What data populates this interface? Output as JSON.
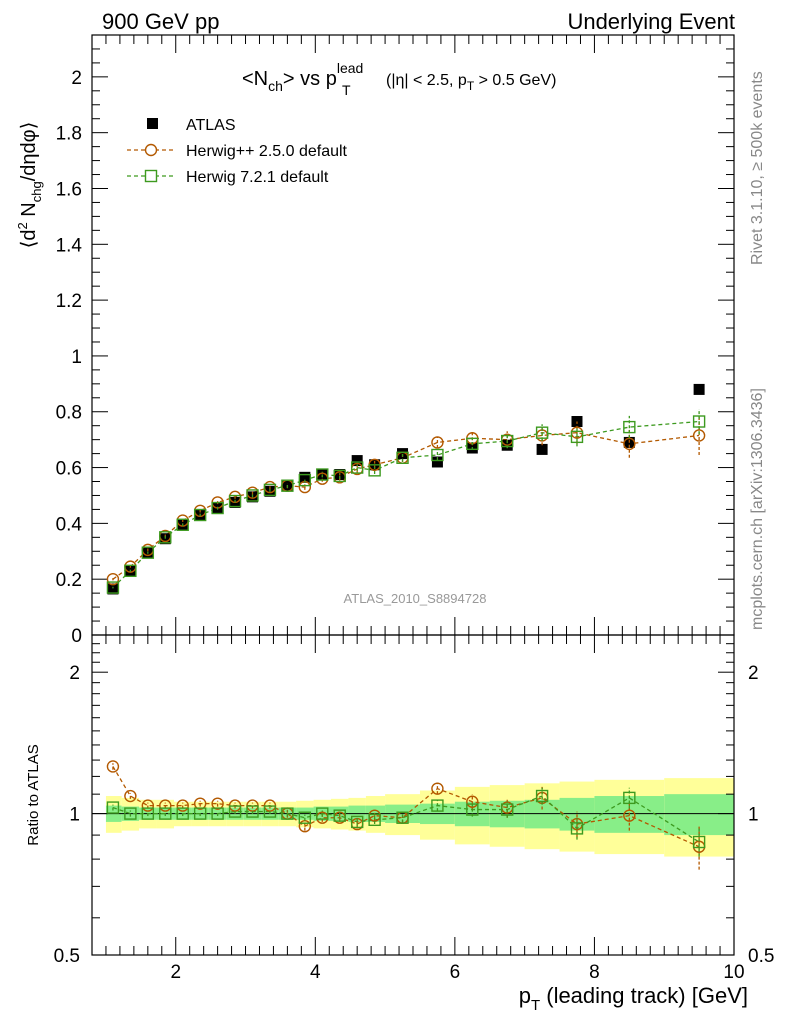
{
  "header": {
    "left": "900 GeV pp",
    "right": "Underlying Event"
  },
  "side_text": {
    "rivet": "Rivet 3.1.10, ≥ 500k events",
    "mcplots": "mcplots.cern.ch [arXiv:1306.3436]"
  },
  "chart_data": [
    {
      "type": "scatter",
      "panel": "main",
      "title_parts": {
        "open": "<N",
        "sub1": "ch",
        "mid": "> vs p",
        "sup": "lead",
        "sub2": "T",
        "cut1": "(|η| < 2.5, p",
        "cut_sub": "T",
        "cut2": " > 0.5 GeV)"
      },
      "ylabel_parts": {
        "a": "⟨d",
        "sup": "2",
        "b": " N",
        "sub": "chg",
        "c": "/dηdφ⟩"
      },
      "watermark": "ATLAS_2010_S8894728",
      "ylim": [
        0,
        2.15
      ],
      "xlim": [
        0.8,
        10
      ],
      "yticks": [
        {
          "v": 0,
          "label": "0"
        },
        {
          "v": 0.2,
          "label": "0.2"
        },
        {
          "v": 0.4,
          "label": "0.4"
        },
        {
          "v": 0.6,
          "label": "0.6"
        },
        {
          "v": 0.8,
          "label": "0.8"
        },
        {
          "v": 1.0,
          "label": "1"
        },
        {
          "v": 1.2,
          "label": "1.2"
        },
        {
          "v": 1.4,
          "label": "1.4"
        },
        {
          "v": 1.6,
          "label": "1.6"
        },
        {
          "v": 1.8,
          "label": "1.8"
        },
        {
          "v": 2.0,
          "label": "2"
        }
      ],
      "legend": [
        "ATLAS",
        "Herwig++ 2.5.0 default",
        "Herwig 7.2.1 default"
      ],
      "x": [
        1.1,
        1.35,
        1.6,
        1.85,
        2.1,
        2.35,
        2.6,
        2.85,
        3.1,
        3.35,
        3.6,
        3.85,
        4.1,
        4.35,
        4.6,
        4.85,
        5.25,
        5.75,
        6.25,
        6.75,
        7.25,
        7.75,
        8.5,
        9.5
      ],
      "series": [
        {
          "name": "ATLAS",
          "color": "#000000",
          "marker": "filled-square",
          "values": [
            0.165,
            0.23,
            0.295,
            0.345,
            0.395,
            0.43,
            0.455,
            0.475,
            0.495,
            0.515,
            0.535,
            0.565,
            0.575,
            0.575,
            0.625,
            0.61,
            0.65,
            0.62,
            0.67,
            0.68,
            0.665,
            0.765,
            0.69,
            0.88
          ]
        },
        {
          "name": "Herwig++ 2.5.0 default",
          "color": "#b35900",
          "marker": "open-circle",
          "values": [
            0.2,
            0.245,
            0.305,
            0.355,
            0.41,
            0.445,
            0.475,
            0.495,
            0.51,
            0.53,
            0.535,
            0.53,
            0.56,
            0.565,
            0.595,
            0.61,
            0.635,
            0.69,
            0.705,
            0.7,
            0.715,
            0.725,
            0.685,
            0.715
          ],
          "errors": [
            0.004,
            0.004,
            0.005,
            0.005,
            0.005,
            0.006,
            0.006,
            0.007,
            0.007,
            0.008,
            0.009,
            0.01,
            0.011,
            0.012,
            0.013,
            0.014,
            0.015,
            0.02,
            0.025,
            0.03,
            0.035,
            0.04,
            0.05,
            0.07
          ]
        },
        {
          "name": "Herwig 7.2.1 default",
          "color": "#3d9a1f",
          "marker": "open-square",
          "values": [
            0.17,
            0.23,
            0.295,
            0.35,
            0.395,
            0.43,
            0.455,
            0.48,
            0.5,
            0.52,
            0.535,
            0.555,
            0.575,
            0.57,
            0.6,
            0.59,
            0.635,
            0.645,
            0.685,
            0.695,
            0.725,
            0.71,
            0.745,
            0.765
          ],
          "errors": [
            0.003,
            0.004,
            0.004,
            0.005,
            0.005,
            0.005,
            0.006,
            0.006,
            0.007,
            0.007,
            0.008,
            0.009,
            0.01,
            0.011,
            0.012,
            0.013,
            0.014,
            0.018,
            0.022,
            0.026,
            0.03,
            0.034,
            0.04,
            0.045
          ]
        }
      ]
    },
    {
      "type": "scatter",
      "panel": "ratio",
      "ylabel": "Ratio to ATLAS",
      "xlabel_parts": {
        "a": "p",
        "sub": "T",
        "b": " (leading track) [GeV]"
      },
      "ylim": [
        0.5,
        2.4
      ],
      "yscale": "log",
      "xlim": [
        0.8,
        10
      ],
      "yticks": [
        {
          "v": 0.5,
          "label": "0.5"
        },
        {
          "v": 1,
          "label": "1"
        },
        {
          "v": 2,
          "label": "2"
        }
      ],
      "xticks": [
        {
          "v": 2,
          "label": "2"
        },
        {
          "v": 4,
          "label": "4"
        },
        {
          "v": 6,
          "label": "6"
        },
        {
          "v": 8,
          "label": "8"
        },
        {
          "v": 10,
          "label": "10"
        }
      ],
      "band_edges": [
        1.0,
        1.225,
        1.475,
        1.725,
        1.975,
        2.225,
        2.475,
        2.725,
        2.975,
        3.225,
        3.475,
        3.725,
        3.975,
        4.225,
        4.475,
        4.725,
        5.0,
        5.5,
        6.0,
        6.5,
        7.0,
        7.5,
        8.0,
        9.0,
        10.0
      ],
      "band_inner_half": [
        0.04,
        0.035,
        0.03,
        0.03,
        0.03,
        0.03,
        0.03,
        0.03,
        0.03,
        0.03,
        0.03,
        0.03,
        0.035,
        0.035,
        0.04,
        0.04,
        0.045,
        0.05,
        0.06,
        0.065,
        0.07,
        0.08,
        0.09,
        0.1
      ],
      "band_outer_half": [
        0.09,
        0.08,
        0.07,
        0.07,
        0.06,
        0.06,
        0.06,
        0.06,
        0.06,
        0.06,
        0.06,
        0.065,
        0.07,
        0.075,
        0.08,
        0.09,
        0.1,
        0.12,
        0.14,
        0.15,
        0.16,
        0.17,
        0.18,
        0.19
      ],
      "band_inner_color": "#88ee88",
      "band_outer_color": "#ffff99",
      "series": [
        {
          "name": "Herwig++ 2.5.0 default",
          "color": "#b35900",
          "values": [
            1.26,
            1.09,
            1.04,
            1.04,
            1.04,
            1.05,
            1.05,
            1.04,
            1.04,
            1.04,
            1.0,
            0.94,
            0.98,
            0.98,
            0.95,
            0.99,
            0.98,
            1.13,
            1.06,
            1.03,
            1.08,
            0.95,
            0.99,
            0.85
          ],
          "errors": [
            0.02,
            0.015,
            0.015,
            0.015,
            0.015,
            0.015,
            0.015,
            0.015,
            0.015,
            0.015,
            0.02,
            0.02,
            0.02,
            0.02,
            0.02,
            0.025,
            0.025,
            0.03,
            0.04,
            0.05,
            0.06,
            0.06,
            0.07,
            0.09
          ]
        },
        {
          "name": "Herwig 7.2.1 default",
          "color": "#3d9a1f",
          "values": [
            1.03,
            1.0,
            1.0,
            1.0,
            1.0,
            1.0,
            1.0,
            1.01,
            1.01,
            1.01,
            1.0,
            0.98,
            1.0,
            0.99,
            0.96,
            0.97,
            0.98,
            1.04,
            1.02,
            1.02,
            1.09,
            0.93,
            1.08,
            0.87
          ],
          "errors": [
            0.015,
            0.015,
            0.012,
            0.012,
            0.012,
            0.012,
            0.012,
            0.012,
            0.012,
            0.012,
            0.015,
            0.015,
            0.015,
            0.017,
            0.018,
            0.02,
            0.022,
            0.028,
            0.035,
            0.04,
            0.045,
            0.05,
            0.055,
            0.06
          ]
        }
      ]
    }
  ]
}
